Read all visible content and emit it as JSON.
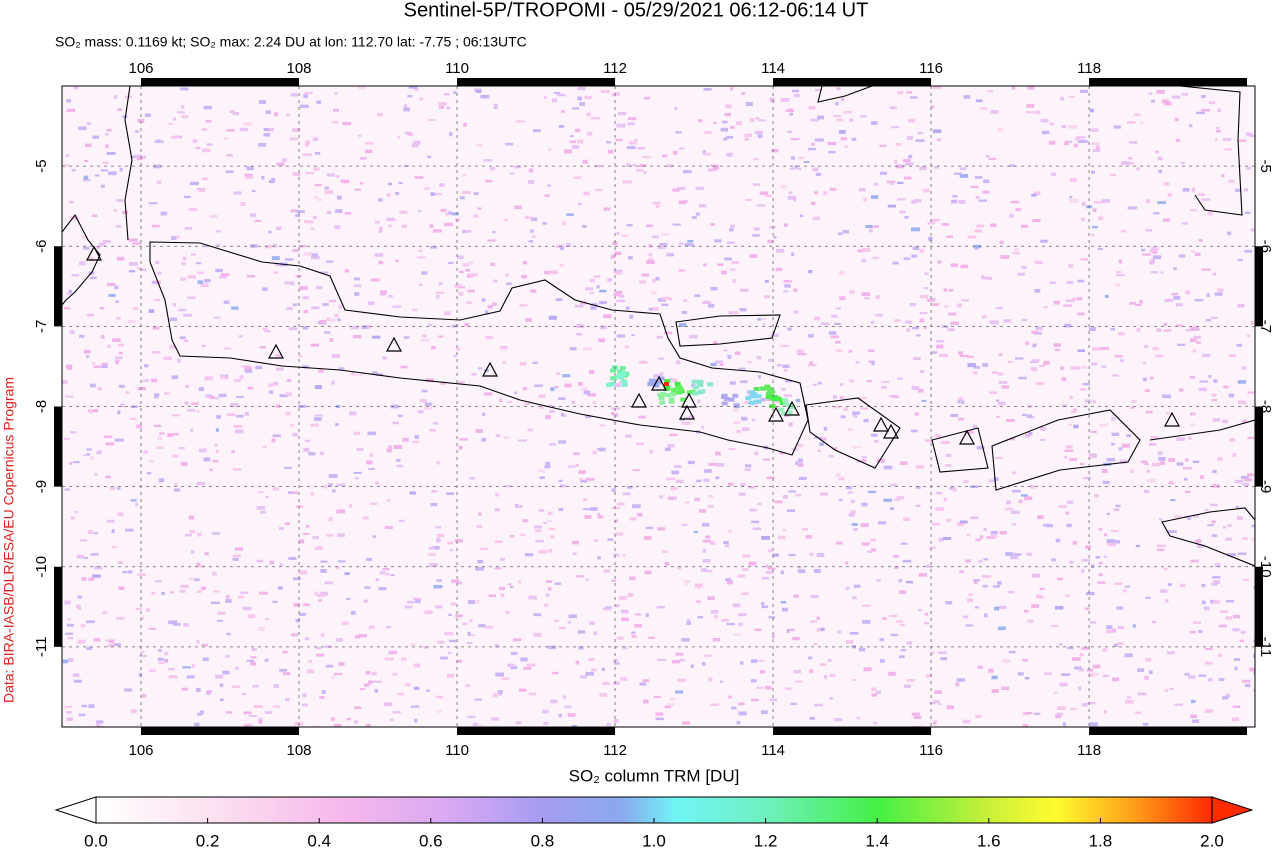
{
  "header": {
    "title": "Sentinel-5P/TROPOMI - 05/29/2021 06:12-06:14 UT",
    "subtitle": "SO₂ mass: 0.1169 kt; SO₂ max: 2.24 DU at lon: 112.70 lat: -7.75 ; 06:13UTC"
  },
  "map": {
    "lonlim": [
      105,
      120.1
    ],
    "latlim": [
      -4,
      -12
    ],
    "lon_ticks": [
      106,
      108,
      110,
      112,
      114,
      116,
      118
    ],
    "lat_ticks": [
      -5,
      -6,
      -7,
      -8,
      -9,
      -10,
      -11
    ]
  },
  "colorbar": {
    "label": "SO₂ column TRM [DU]",
    "lim": [
      0,
      2
    ],
    "ticks": [
      {
        "value": 0,
        "label": "0.0"
      },
      0.2,
      0.4,
      0.6,
      0.8,
      {
        "value": 1,
        "label": "1.0"
      },
      1.2,
      1.4,
      1.6,
      1.8,
      {
        "value": 2,
        "label": "2.0"
      }
    ]
  },
  "credit": "Data: BIRA-IASB/DLR/ESA/EU Copernicus Program"
}
